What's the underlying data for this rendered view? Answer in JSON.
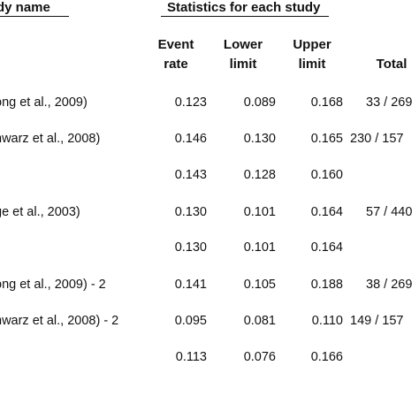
{
  "header": {
    "study_name": "dy name",
    "statistics": "Statistics for each study"
  },
  "columns": {
    "event_rate": [
      "Event",
      "rate"
    ],
    "lower_limit": [
      "Lower",
      "limit"
    ],
    "upper_limit": [
      "Upper",
      "limit"
    ],
    "total": "Total"
  },
  "rows": [
    {
      "name": "ong et al., 2009)",
      "event_rate": "0.123",
      "lower": "0.089",
      "upper": "0.168",
      "total": "33 / 269"
    },
    {
      "name": "hwarz et al., 2008)",
      "event_rate": "0.146",
      "lower": "0.130",
      "upper": "0.165",
      "total": "230 / 157"
    },
    {
      "name": "",
      "event_rate": "0.143",
      "lower": "0.128",
      "upper": "0.160",
      "total": ""
    },
    {
      "name": "ge et al., 2003)",
      "event_rate": "0.130",
      "lower": "0.101",
      "upper": "0.164",
      "total": "57 / 440"
    },
    {
      "name": "",
      "event_rate": "0.130",
      "lower": "0.101",
      "upper": "0.164",
      "total": ""
    },
    {
      "name": "ong et al., 2009) - 2",
      "event_rate": "0.141",
      "lower": "0.105",
      "upper": "0.188",
      "total": "38 / 269"
    },
    {
      "name": "hwarz et al., 2008) - 2",
      "event_rate": "0.095",
      "lower": "0.081",
      "upper": "0.110",
      "total": "149 / 157"
    },
    {
      "name": "",
      "event_rate": "0.113",
      "lower": "0.076",
      "upper": "0.166",
      "total": ""
    }
  ]
}
